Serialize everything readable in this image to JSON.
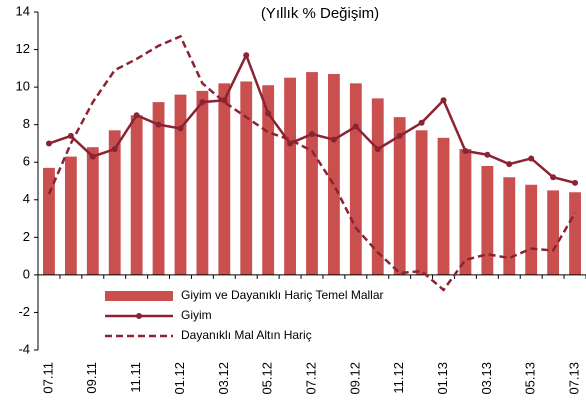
{
  "chart_data": {
    "type": "bar_line",
    "title": "(Yıllık % Değişim)",
    "categories": [
      "07.11",
      null,
      "09.11",
      null,
      "11.11",
      null,
      "01.12",
      null,
      "03.12",
      null,
      "05.12",
      null,
      "07.12",
      null,
      "09.12",
      null,
      "11.12",
      null,
      "01.13",
      null,
      "03.13",
      null,
      "05.13",
      null,
      "07.13"
    ],
    "series": [
      {
        "name": "Giyim ve Dayanıklı Hariç Temel Mallar",
        "type": "bar",
        "color": "#c9504f",
        "values": [
          5.7,
          6.3,
          6.8,
          7.7,
          8.5,
          9.2,
          9.6,
          9.8,
          10.2,
          10.3,
          10.1,
          10.5,
          10.8,
          10.7,
          10.2,
          9.4,
          8.4,
          7.7,
          7.3,
          6.7,
          5.8,
          5.2,
          4.8,
          4.5,
          4.4
        ]
      },
      {
        "name": "Giyim",
        "type": "line",
        "color": "#8b2332",
        "values": [
          7.0,
          7.4,
          6.3,
          6.7,
          8.5,
          8.0,
          7.8,
          9.2,
          9.3,
          11.7,
          8.6,
          7.0,
          7.5,
          7.2,
          7.9,
          6.7,
          7.4,
          8.1,
          9.3,
          6.6,
          6.4,
          5.9,
          6.2,
          5.2,
          4.9
        ]
      },
      {
        "name": "Dayanıklı Mal Altın Hariç",
        "type": "dashed",
        "color": "#8b2332",
        "values": [
          4.3,
          7.0,
          9.2,
          10.9,
          11.5,
          12.2,
          12.7,
          10.2,
          9.2,
          8.4,
          7.6,
          7.2,
          6.6,
          4.8,
          2.5,
          1.2,
          0.1,
          0.2,
          -0.8,
          0.8,
          1.1,
          0.9,
          1.4,
          1.3,
          3.3
        ]
      }
    ],
    "ylim": [
      -4,
      14
    ],
    "yticks": [
      -4,
      -2,
      0,
      2,
      4,
      6,
      8,
      10,
      12,
      14
    ]
  }
}
